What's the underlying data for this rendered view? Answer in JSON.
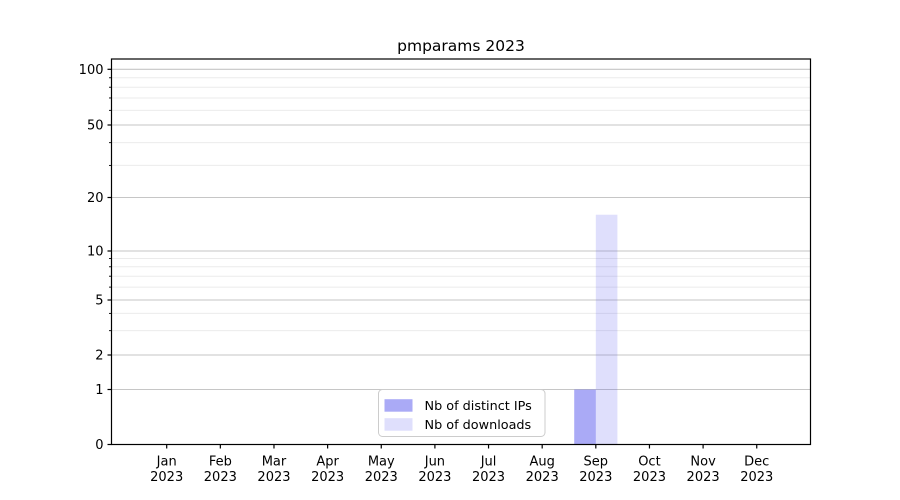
{
  "chart_data": {
    "type": "bar",
    "title": "pmparams 2023",
    "months": [
      "Jan",
      "Feb",
      "Mar",
      "Apr",
      "May",
      "Jun",
      "Jul",
      "Aug",
      "Sep",
      "Oct",
      "Nov",
      "Dec"
    ],
    "year_label": "2023",
    "categories": [
      "Jan 2023",
      "Feb 2023",
      "Mar 2023",
      "Apr 2023",
      "May 2023",
      "Jun 2023",
      "Jul 2023",
      "Aug 2023",
      "Sep 2023",
      "Oct 2023",
      "Nov 2023",
      "Dec 2023"
    ],
    "series": [
      {
        "name": "Nb of distinct IPs",
        "apparent_color": "#aaaaf4",
        "fill": "rgba(86,86,238,0.5)",
        "values": [
          0,
          0,
          0,
          0,
          0,
          0,
          0,
          0,
          1,
          0,
          0,
          0
        ]
      },
      {
        "name": "Nb of downloads",
        "apparent_color": "#dedefb",
        "fill": "rgba(86,86,238,0.19)",
        "values": [
          0,
          0,
          0,
          0,
          0,
          0,
          0,
          0,
          16,
          0,
          0,
          0
        ]
      }
    ],
    "yscale": "log-like with linear 0-1 segment",
    "y_major_ticks": [
      0,
      1,
      2,
      5,
      10,
      20,
      50,
      100
    ],
    "y_minor_ticks": [
      3,
      4,
      6,
      7,
      8,
      9,
      30,
      40,
      60,
      70,
      80,
      90
    ],
    "grid": true,
    "legend": {
      "position": "lower center",
      "entries": [
        "Nb of distinct IPs",
        "Nb of downloads"
      ]
    }
  },
  "colors": {
    "background": "#ffffff",
    "axis": "#000000",
    "major_grid": "#c6c6c6",
    "minor_grid": "#ebebeb",
    "legend_border": "#cccccc",
    "legend_bg": "rgba(255,255,255,0.85)",
    "text": "#000000"
  }
}
